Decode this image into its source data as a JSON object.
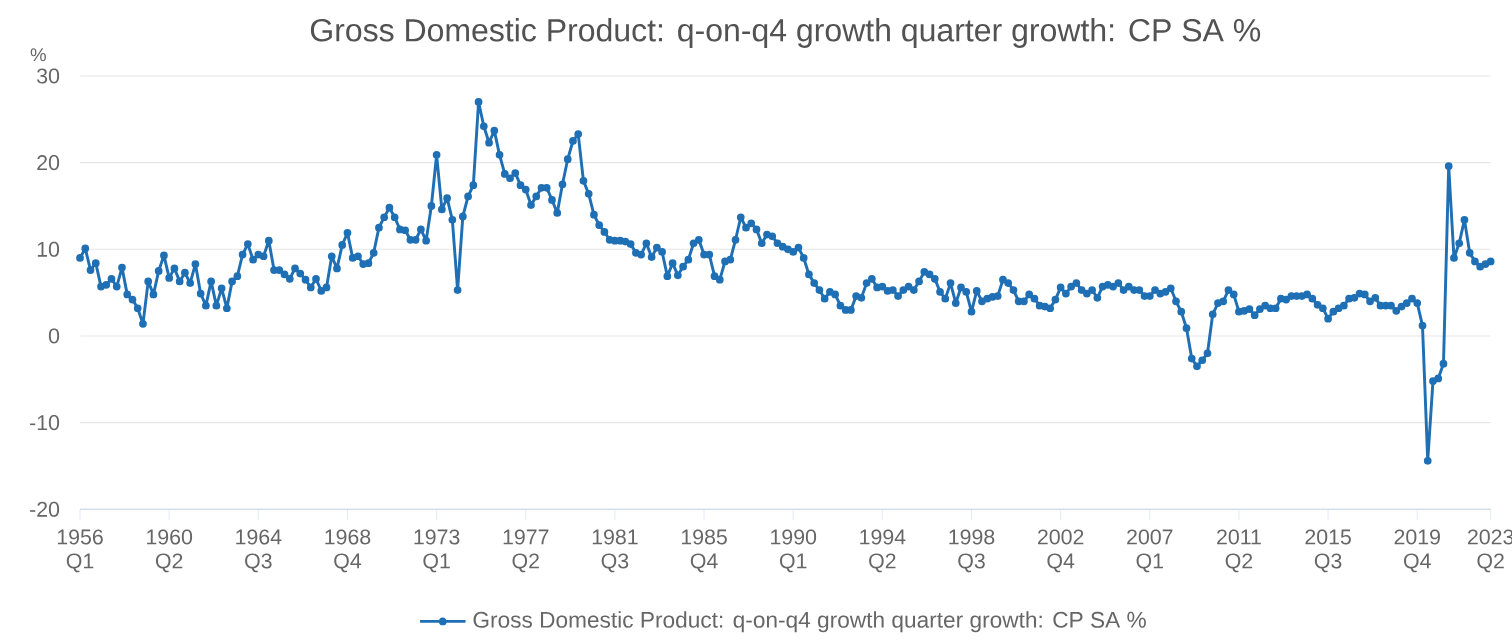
{
  "chart_data": {
    "type": "line",
    "title": "Gross Domestic Product: q-on-q4 growth quarter growth: CP SA %",
    "ylabel": "%",
    "ylim": [
      -20,
      30
    ],
    "yticks": [
      -20,
      -10,
      0,
      10,
      20,
      30
    ],
    "categories": [
      "1956 Q1",
      null,
      null,
      null,
      null,
      null,
      null,
      null,
      null,
      null,
      null,
      null,
      null,
      null,
      null,
      null,
      null,
      "1960 Q2",
      null,
      null,
      null,
      null,
      null,
      null,
      null,
      null,
      null,
      null,
      null,
      null,
      null,
      null,
      null,
      null,
      "1964 Q3",
      null,
      null,
      null,
      null,
      null,
      null,
      null,
      null,
      null,
      null,
      null,
      null,
      null,
      null,
      null,
      null,
      "1968 Q4",
      null,
      null,
      null,
      null,
      null,
      null,
      null,
      null,
      null,
      null,
      null,
      null,
      null,
      null,
      null,
      null,
      "1973 Q1",
      null,
      null,
      null,
      null,
      null,
      null,
      null,
      null,
      null,
      null,
      null,
      null,
      null,
      null,
      null,
      null,
      "1977 Q2",
      null,
      null,
      null,
      null,
      null,
      null,
      null,
      null,
      null,
      null,
      null,
      null,
      null,
      null,
      null,
      null,
      "1981 Q3",
      null,
      null,
      null,
      null,
      null,
      null,
      null,
      null,
      null,
      null,
      null,
      null,
      null,
      null,
      null,
      null,
      "1985 Q4",
      null,
      null,
      null,
      null,
      null,
      null,
      null,
      null,
      null,
      null,
      null,
      null,
      null,
      null,
      null,
      null,
      "1990 Q1",
      null,
      null,
      null,
      null,
      null,
      null,
      null,
      null,
      null,
      null,
      null,
      null,
      null,
      null,
      null,
      null,
      "1994 Q2",
      null,
      null,
      null,
      null,
      null,
      null,
      null,
      null,
      null,
      null,
      null,
      null,
      null,
      null,
      null,
      null,
      "1998 Q3",
      null,
      null,
      null,
      null,
      null,
      null,
      null,
      null,
      null,
      null,
      null,
      null,
      null,
      null,
      null,
      null,
      "2002 Q4",
      null,
      null,
      null,
      null,
      null,
      null,
      null,
      null,
      null,
      null,
      null,
      null,
      null,
      null,
      null,
      null,
      "2007 Q1",
      null,
      null,
      null,
      null,
      null,
      null,
      null,
      null,
      null,
      null,
      null,
      null,
      null,
      null,
      null,
      null,
      "2011 Q2",
      null,
      null,
      null,
      null,
      null,
      null,
      null,
      null,
      null,
      null,
      null,
      null,
      null,
      null,
      null,
      null,
      "2015 Q3",
      null,
      null,
      null,
      null,
      null,
      null,
      null,
      null,
      null,
      null,
      null,
      null,
      null,
      null,
      null,
      null,
      "2019 Q4",
      null,
      null,
      null,
      null,
      null,
      null,
      null,
      null,
      null,
      null,
      null,
      null,
      null,
      "2023 Q2"
    ],
    "grid": "y",
    "legend": "bottom",
    "marker": "circle",
    "line_style": "solid",
    "series": [
      {
        "name": "Gross Domestic Product: q-on-q4 growth quarter growth: CP SA %",
        "color": "#1f6fb5",
        "values": [
          9.0,
          10.1,
          7.6,
          8.4,
          5.7,
          5.9,
          6.6,
          5.7,
          7.9,
          4.8,
          4.2,
          3.2,
          1.4,
          6.3,
          4.8,
          7.5,
          9.3,
          6.7,
          7.8,
          6.3,
          7.3,
          6.1,
          8.3,
          4.9,
          3.5,
          6.3,
          3.5,
          5.5,
          3.2,
          6.3,
          6.9,
          9.4,
          10.6,
          8.8,
          9.4,
          9.2,
          11.0,
          7.6,
          7.6,
          7.1,
          6.6,
          7.8,
          7.2,
          6.5,
          5.6,
          6.6,
          5.2,
          5.6,
          9.2,
          7.8,
          10.5,
          11.9,
          9.0,
          9.2,
          8.3,
          8.4,
          9.6,
          12.5,
          13.7,
          14.8,
          13.7,
          12.3,
          12.2,
          11.1,
          11.1,
          12.3,
          11.0,
          15.0,
          20.9,
          14.6,
          15.9,
          13.4,
          5.3,
          13.8,
          16.1,
          17.4,
          27.0,
          24.2,
          22.3,
          23.7,
          20.9,
          18.7,
          18.2,
          18.8,
          17.4,
          16.9,
          15.1,
          16.1,
          17.1,
          17.1,
          15.7,
          14.2,
          17.5,
          20.4,
          22.5,
          23.3,
          17.9,
          16.4,
          14.0,
          12.8,
          12.0,
          11.1,
          11.0,
          11.0,
          10.9,
          10.6,
          9.6,
          9.4,
          10.7,
          9.1,
          10.2,
          9.7,
          6.9,
          8.4,
          7.0,
          8.0,
          8.8,
          10.7,
          11.1,
          9.4,
          9.4,
          6.9,
          6.5,
          8.6,
          8.8,
          11.1,
          13.7,
          12.5,
          13.0,
          12.3,
          10.7,
          11.7,
          11.5,
          10.7,
          10.3,
          10.0,
          9.7,
          10.2,
          9.0,
          7.1,
          6.1,
          5.3,
          4.3,
          5.1,
          4.8,
          3.5,
          3.0,
          3.0,
          4.6,
          4.4,
          6.1,
          6.6,
          5.6,
          5.7,
          5.2,
          5.3,
          4.6,
          5.3,
          5.7,
          5.3,
          6.3,
          7.4,
          7.1,
          6.6,
          5.1,
          4.3,
          6.1,
          3.8,
          5.6,
          5.1,
          2.8,
          5.2,
          4.0,
          4.3,
          4.5,
          4.6,
          6.5,
          6.1,
          5.3,
          4.0,
          4.0,
          4.8,
          4.3,
          3.5,
          3.4,
          3.2,
          4.2,
          5.6,
          4.9,
          5.7,
          6.1,
          5.3,
          4.9,
          5.3,
          4.4,
          5.7,
          5.9,
          5.7,
          6.1,
          5.3,
          5.7,
          5.3,
          5.3,
          4.6,
          4.6,
          5.3,
          4.9,
          5.1,
          5.5,
          4.0,
          2.8,
          0.9,
          -2.6,
          -3.5,
          -2.8,
          -2.0,
          2.5,
          3.8,
          4.0,
          5.3,
          4.8,
          2.8,
          2.9,
          3.1,
          2.4,
          3.1,
          3.5,
          3.2,
          3.2,
          4.3,
          4.2,
          4.6,
          4.6,
          4.6,
          4.8,
          4.3,
          3.6,
          3.2,
          2.0,
          2.8,
          3.2,
          3.5,
          4.3,
          4.4,
          4.9,
          4.8,
          4.0,
          4.4,
          3.5,
          3.5,
          3.5,
          2.9,
          3.4,
          3.8,
          4.3,
          3.8,
          1.2,
          -14.4,
          -5.2,
          -4.9,
          -3.2,
          19.6,
          9.0,
          10.7,
          13.4,
          9.6,
          8.6,
          8.0,
          8.3,
          8.6
        ]
      }
    ]
  }
}
